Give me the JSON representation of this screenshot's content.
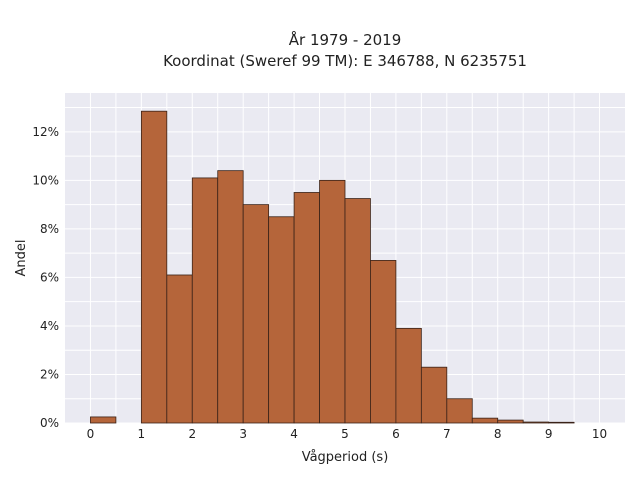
{
  "chart_data": {
    "type": "bar",
    "title": [
      "År 1979 - 2019",
      "Koordinat (Sweref 99 TM): E 346788, N 6235751"
    ],
    "xlabel": "Vågperiod (s)",
    "ylabel": "Andel",
    "xlim": [
      -0.5,
      10.5
    ],
    "ylim": [
      0,
      13.6
    ],
    "x_ticks": [
      0,
      1,
      2,
      3,
      4,
      5,
      6,
      7,
      8,
      9,
      10
    ],
    "y_ticks": [
      0,
      2,
      4,
      6,
      8,
      10,
      12
    ],
    "y_tick_suffix": "%",
    "grid": true,
    "bar_color": "#b5653a",
    "bar_edge_color": "#3a2218",
    "plot_background": "#eaeaf2",
    "bins": [
      {
        "start": 0.0,
        "end": 0.5,
        "value": 0.25
      },
      {
        "start": 0.5,
        "end": 1.0,
        "value": 0.0
      },
      {
        "start": 1.0,
        "end": 1.5,
        "value": 12.85
      },
      {
        "start": 1.5,
        "end": 2.0,
        "value": 6.1
      },
      {
        "start": 2.0,
        "end": 2.5,
        "value": 10.1
      },
      {
        "start": 2.5,
        "end": 3.0,
        "value": 10.4
      },
      {
        "start": 3.0,
        "end": 3.5,
        "value": 9.0
      },
      {
        "start": 3.5,
        "end": 4.0,
        "value": 8.5
      },
      {
        "start": 4.0,
        "end": 4.5,
        "value": 9.5
      },
      {
        "start": 4.5,
        "end": 5.0,
        "value": 10.0
      },
      {
        "start": 5.0,
        "end": 5.5,
        "value": 9.25
      },
      {
        "start": 5.5,
        "end": 6.0,
        "value": 6.7
      },
      {
        "start": 6.0,
        "end": 6.5,
        "value": 3.9
      },
      {
        "start": 6.5,
        "end": 7.0,
        "value": 2.3
      },
      {
        "start": 7.0,
        "end": 7.5,
        "value": 1.0
      },
      {
        "start": 7.5,
        "end": 8.0,
        "value": 0.2
      },
      {
        "start": 8.0,
        "end": 8.5,
        "value": 0.12
      },
      {
        "start": 8.5,
        "end": 9.0,
        "value": 0.04
      },
      {
        "start": 9.0,
        "end": 9.5,
        "value": 0.03
      },
      {
        "start": 9.5,
        "end": 10.0,
        "value": 0.0
      }
    ]
  }
}
